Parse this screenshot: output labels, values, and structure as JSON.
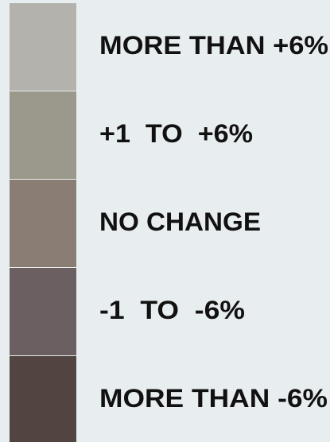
{
  "legend": {
    "items": [
      {
        "label": "MORE THAN +6%",
        "color": "#b3b2ac"
      },
      {
        "label": "+1  TO  +6%",
        "color": "#9b998b"
      },
      {
        "label": "NO CHANGE",
        "color": "#8a7d73"
      },
      {
        "label": "-1  TO  -6%",
        "color": "#6b5f61"
      },
      {
        "label": "MORE THAN -6%",
        "color": "#524440"
      }
    ]
  }
}
